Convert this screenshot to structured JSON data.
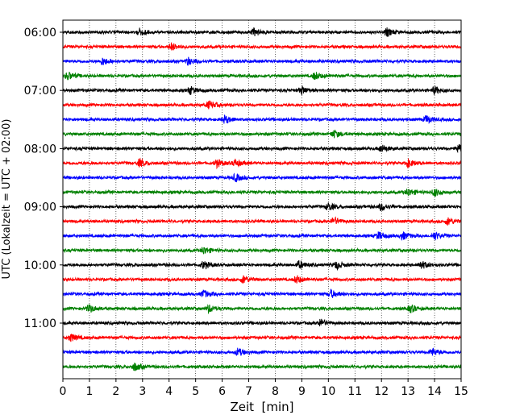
{
  "chart_data": {
    "type": "line",
    "title": "",
    "xlabel": "Zeit  [min]",
    "ylabel": "UTC (Lokalzeit = UTC + 02:00)",
    "xlim": [
      0,
      15
    ],
    "x_ticks": [
      0,
      1,
      2,
      3,
      4,
      5,
      6,
      7,
      8,
      9,
      10,
      11,
      12,
      13,
      14,
      15
    ],
    "x_tick_labels": [
      "0",
      "1",
      "2",
      "3",
      "4",
      "5",
      "6",
      "7",
      "8",
      "9",
      "10",
      "11",
      "12",
      "13",
      "14",
      "15"
    ],
    "y_tick_labels": [
      "06:00",
      "07:00",
      "08:00",
      "09:00",
      "10:00",
      "11:00"
    ],
    "grid": "vertical dotted",
    "trace_minutes": 15,
    "colors": [
      "#000000",
      "#ff0000",
      "#0000ff",
      "#008000"
    ],
    "traces": [
      {
        "start": "06:00",
        "color": "#000000",
        "events": [
          2.9,
          7.2,
          12.2
        ]
      },
      {
        "start": "06:15",
        "color": "#ff0000",
        "events": [
          4.1
        ]
      },
      {
        "start": "06:30",
        "color": "#0000ff",
        "events": [
          1.5,
          4.7
        ]
      },
      {
        "start": "06:45",
        "color": "#008000",
        "events": [
          0.2,
          9.5
        ]
      },
      {
        "start": "07:00",
        "color": "#000000",
        "events": [
          4.8,
          9.0,
          14.0
        ]
      },
      {
        "start": "07:15",
        "color": "#ff0000",
        "events": [
          5.5
        ]
      },
      {
        "start": "07:30",
        "color": "#0000ff",
        "events": [
          6.1,
          13.7
        ]
      },
      {
        "start": "07:45",
        "color": "#008000",
        "events": [
          10.2
        ]
      },
      {
        "start": "08:00",
        "color": "#000000",
        "events": [
          12.0,
          14.9
        ]
      },
      {
        "start": "08:15",
        "color": "#ff0000",
        "events": [
          2.9,
          5.8,
          6.5,
          13.0
        ]
      },
      {
        "start": "08:30",
        "color": "#0000ff",
        "events": [
          6.5
        ]
      },
      {
        "start": "08:45",
        "color": "#008000",
        "events": [
          13.0,
          14.0
        ]
      },
      {
        "start": "09:00",
        "color": "#000000",
        "events": [
          10.0,
          12.0
        ]
      },
      {
        "start": "09:15",
        "color": "#ff0000",
        "events": [
          10.2,
          14.5
        ]
      },
      {
        "start": "09:30",
        "color": "#0000ff",
        "events": [
          11.9,
          12.8,
          14.0
        ]
      },
      {
        "start": "09:45",
        "color": "#008000",
        "events": [
          5.3
        ]
      },
      {
        "start": "10:00",
        "color": "#000000",
        "events": [
          5.3,
          8.9,
          10.3,
          13.5
        ]
      },
      {
        "start": "10:15",
        "color": "#ff0000",
        "events": [
          6.8,
          8.8
        ]
      },
      {
        "start": "10:30",
        "color": "#0000ff",
        "events": [
          5.3,
          10.1
        ]
      },
      {
        "start": "10:45",
        "color": "#008000",
        "events": [
          1.0,
          5.5,
          13.1
        ]
      },
      {
        "start": "11:00",
        "color": "#000000",
        "events": [
          9.7
        ]
      },
      {
        "start": "11:15",
        "color": "#ff0000",
        "events": [
          0.3
        ]
      },
      {
        "start": "11:30",
        "color": "#0000ff",
        "events": [
          6.6,
          13.9
        ]
      },
      {
        "start": "11:45",
        "color": "#008000",
        "events": [
          2.7
        ]
      }
    ]
  }
}
